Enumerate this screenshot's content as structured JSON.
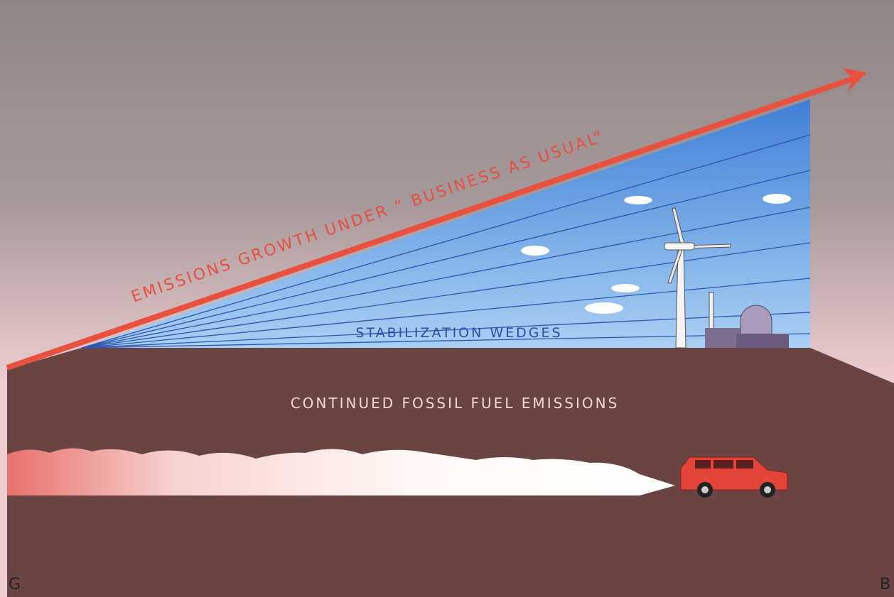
{
  "labels": {
    "growth": "EMISSIONS GROWTH UNDER “ BUSINESS AS USUAL”",
    "wedges": "STABILIZATION WEDGES",
    "fossil": "CONTINUED FOSSIL FUEL EMISSIONS",
    "corner_left": "G",
    "corner_right": "B"
  }
}
